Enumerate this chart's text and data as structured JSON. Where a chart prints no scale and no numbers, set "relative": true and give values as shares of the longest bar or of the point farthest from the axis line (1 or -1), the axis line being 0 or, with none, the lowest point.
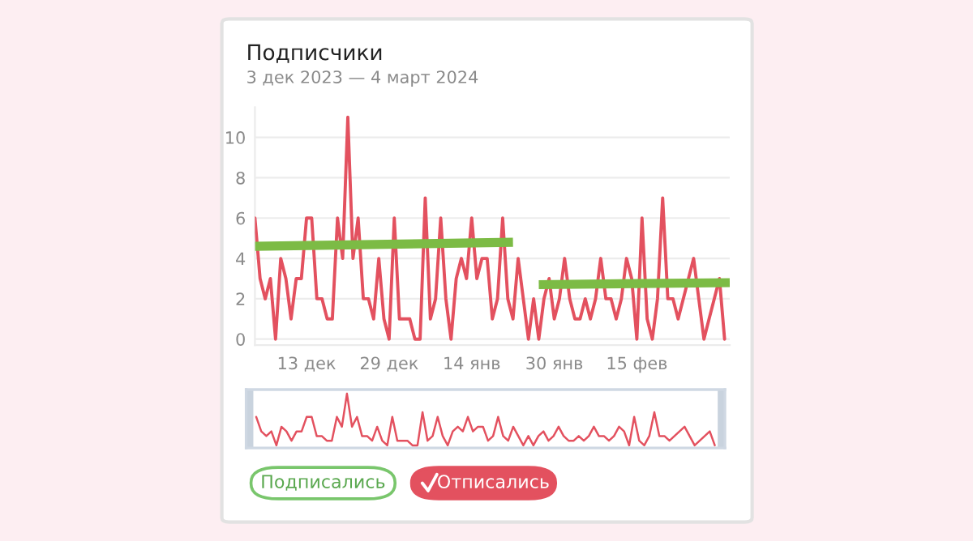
{
  "chart_data": [
    {
      "type": "line",
      "title": "Подписчики",
      "subtitle": "3 дек 2023 — 4 март 2024",
      "xlim": [
        "2023-12-03",
        "2024-03-04"
      ],
      "ylim": [
        -0.3,
        11.5
      ],
      "xticks": [
        {
          "value": "2023-12-13",
          "label": "13 дек"
        },
        {
          "value": "2023-12-29",
          "label": "29 дек"
        },
        {
          "value": "2024-01-14",
          "label": "14 янв"
        },
        {
          "value": "2024-01-30",
          "label": "30 янв"
        },
        {
          "value": "2024-02-15",
          "label": "15 фев"
        }
      ],
      "yticks": [
        0,
        2,
        4,
        6,
        8,
        10
      ],
      "grid": "y",
      "legend": "bottom",
      "annotations": [
        "Подписались"
      ],
      "series": [
        {
          "name": "Отписались",
          "color": "#e3515f",
          "x": [
            "2023-12-03",
            "2023-12-04",
            "2023-12-05",
            "2023-12-06",
            "2023-12-07",
            "2023-12-08",
            "2023-12-09",
            "2023-12-10",
            "2023-12-11",
            "2023-12-12",
            "2023-12-13",
            "2023-12-14",
            "2023-12-15",
            "2023-12-16",
            "2023-12-17",
            "2023-12-18",
            "2023-12-19",
            "2023-12-20",
            "2023-12-21",
            "2023-12-22",
            "2023-12-23",
            "2023-12-24",
            "2023-12-25",
            "2023-12-26",
            "2023-12-27",
            "2023-12-28",
            "2023-12-29",
            "2023-12-30",
            "2023-12-31",
            "2024-01-01",
            "2024-01-02",
            "2024-01-03",
            "2024-01-04",
            "2024-01-05",
            "2024-01-06",
            "2024-01-07",
            "2024-01-08",
            "2024-01-09",
            "2024-01-10",
            "2024-01-11",
            "2024-01-12",
            "2024-01-13",
            "2024-01-14",
            "2024-01-15",
            "2024-01-16",
            "2024-01-17",
            "2024-01-18",
            "2024-01-19",
            "2024-01-20",
            "2024-01-21",
            "2024-01-22",
            "2024-01-23",
            "2024-01-24",
            "2024-01-25",
            "2024-01-26",
            "2024-01-27",
            "2024-01-28",
            "2024-01-29",
            "2024-01-30",
            "2024-01-31",
            "2024-02-01",
            "2024-02-02",
            "2024-02-03",
            "2024-02-04",
            "2024-02-05",
            "2024-02-06",
            "2024-02-07",
            "2024-02-08",
            "2024-02-09",
            "2024-02-10",
            "2024-02-11",
            "2024-02-12",
            "2024-02-13",
            "2024-02-14",
            "2024-02-15",
            "2024-02-16",
            "2024-02-17",
            "2024-02-18",
            "2024-02-19",
            "2024-02-20",
            "2024-02-21",
            "2024-02-22",
            "2024-02-23",
            "2024-02-24",
            "2024-02-25",
            "2024-02-26",
            "2024-02-27",
            "2024-02-28",
            "2024-02-29",
            "2024-03-01",
            "2024-03-02",
            "2024-03-03"
          ],
          "values": [
            6,
            3,
            2,
            3,
            0,
            4,
            3,
            1,
            3,
            3,
            6,
            6,
            2,
            2,
            1,
            1,
            6,
            4,
            11,
            4,
            6,
            2,
            2,
            1,
            4,
            1,
            0,
            6,
            1,
            1,
            1,
            0,
            0,
            7,
            1,
            2,
            6,
            2,
            0,
            3,
            4,
            3,
            6,
            3,
            4,
            4,
            1,
            2,
            6,
            2,
            1,
            4,
            2,
            0,
            2,
            0,
            2,
            3,
            1,
            2,
            4,
            2,
            1,
            1,
            2,
            1,
            2,
            4,
            2,
            2,
            1,
            2,
            4,
            3,
            0,
            6,
            1,
            0,
            2,
            7,
            2,
            2,
            1,
            2,
            3,
            4,
            2,
            0,
            1,
            2,
            3,
            0
          ]
        },
        {
          "color": "#7cbb45",
          "x": [
            "2023-12-03",
            "2024-01-22"
          ],
          "values": [
            4.6,
            4.8
          ]
        },
        {
          "color": "#7cbb45",
          "x": [
            "2024-01-27",
            "2024-03-04"
          ],
          "values": [
            2.7,
            2.8
          ]
        }
      ]
    },
    {
      "type": "line",
      "relative": true,
      "tick_labels": false,
      "categories": [
        null,
        null,
        null,
        null,
        null,
        null,
        null,
        null,
        null,
        null,
        null,
        null,
        null,
        null,
        null,
        null,
        null,
        null,
        null,
        null,
        null,
        null,
        null,
        null,
        null,
        null,
        null,
        null,
        null,
        null,
        null,
        null,
        null,
        null,
        null,
        null,
        null,
        null,
        null,
        null,
        null,
        null,
        null,
        null,
        null,
        null,
        null,
        null,
        null,
        null,
        null,
        null,
        null,
        null,
        null,
        null,
        null,
        null,
        null,
        null,
        null,
        null,
        null,
        null,
        null,
        null,
        null,
        null,
        null,
        null,
        null,
        null,
        null,
        null,
        null,
        null,
        null,
        null,
        null,
        null,
        null,
        null,
        null,
        null,
        null,
        null,
        null,
        null,
        null,
        null,
        null,
        null
      ],
      "series": [
        {
          "color": "#e3515f",
          "values": [
            0.55,
            0.27,
            0.18,
            0.27,
            0,
            0.36,
            0.27,
            0.09,
            0.27,
            0.27,
            0.55,
            0.55,
            0.18,
            0.18,
            0.09,
            0.09,
            0.55,
            0.36,
            1,
            0.36,
            0.55,
            0.18,
            0.18,
            0.09,
            0.36,
            0.09,
            0,
            0.55,
            0.09,
            0.09,
            0.09,
            0,
            0,
            0.64,
            0.09,
            0.18,
            0.55,
            0.18,
            0,
            0.27,
            0.36,
            0.27,
            0.55,
            0.27,
            0.36,
            0.36,
            0.09,
            0.18,
            0.55,
            0.18,
            0.09,
            0.36,
            0.18,
            0,
            0.18,
            0,
            0.18,
            0.27,
            0.09,
            0.18,
            0.36,
            0.18,
            0.09,
            0.09,
            0.18,
            0.09,
            0.18,
            0.36,
            0.18,
            0.18,
            0.09,
            0.18,
            0.36,
            0.27,
            0,
            0.55,
            0.09,
            0,
            0.18,
            0.64,
            0.18,
            0.18,
            0.09,
            0.18,
            0.27,
            0.36,
            0.18,
            0,
            0.09,
            0.18,
            0.27,
            0
          ]
        }
      ]
    }
  ]
}
